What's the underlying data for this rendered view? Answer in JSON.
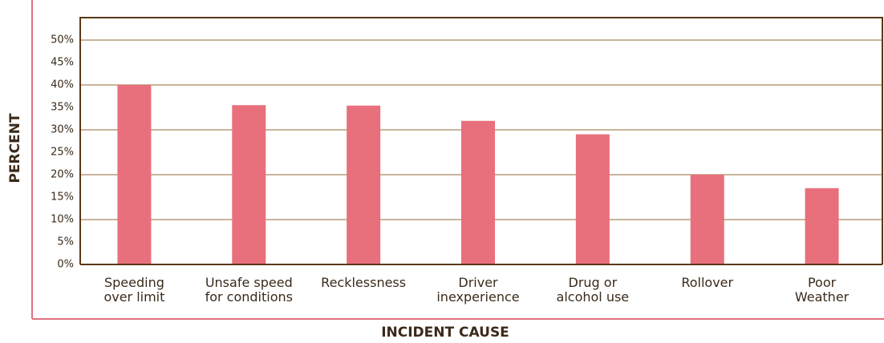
{
  "chart_data": {
    "type": "bar",
    "y_label": "PERCENT",
    "x_label": "INCIDENT CAUSE",
    "categories": [
      [
        "Speeding",
        "over limit"
      ],
      [
        "Unsafe speed",
        "for conditions"
      ],
      [
        "Recklessness"
      ],
      [
        "Driver",
        "inexperience"
      ],
      [
        "Drug or",
        "alcohol use"
      ],
      [
        "Rollover"
      ],
      [
        "Poor",
        "Weather"
      ]
    ],
    "values": [
      40,
      35.5,
      35.4,
      32,
      29,
      20,
      17
    ],
    "color": "#e8707c",
    "ylim": [
      0,
      55
    ],
    "yticks": [
      {
        "value": 0,
        "label": "0%"
      },
      {
        "value": 5,
        "label": "5%"
      },
      {
        "value": 10,
        "label": "10%"
      },
      {
        "value": 15,
        "label": "15%"
      },
      {
        "value": 20,
        "label": "20%"
      },
      {
        "value": 25,
        "label": "25%"
      },
      {
        "value": 30,
        "label": "30%"
      },
      {
        "value": 35,
        "label": "35%"
      },
      {
        "value": 40,
        "label": "40%"
      },
      {
        "value": 45,
        "label": "45%"
      },
      {
        "value": 50,
        "label": "50%"
      }
    ],
    "ygrid": [
      10,
      20,
      30,
      40,
      50
    ]
  }
}
